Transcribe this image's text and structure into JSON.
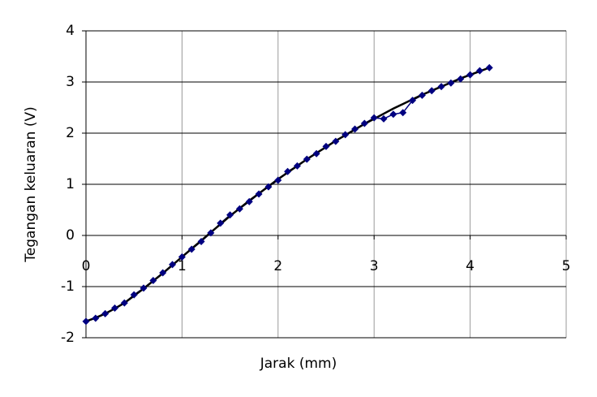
{
  "chart_data": {
    "type": "line",
    "xlabel": "Jarak  (mm)",
    "ylabel": "Tegangan keluaran (V)",
    "x": [
      0,
      0.1,
      0.2,
      0.3,
      0.4,
      0.5,
      0.6,
      0.7,
      0.8,
      0.9,
      1,
      1.1,
      1.2,
      1.3,
      1.4,
      1.5,
      1.6,
      1.7,
      1.8,
      1.9,
      2,
      2.1,
      2.2,
      2.3,
      2.4,
      2.5,
      2.6,
      2.7,
      2.8,
      2.9,
      3,
      3.1,
      3.2,
      3.3,
      3.4,
      3.5,
      3.6,
      3.7,
      3.8,
      3.9,
      4,
      4.1,
      4.2
    ],
    "series": [
      {
        "color": "#000080",
        "marker": "diamond",
        "values": [
          -1.68,
          -1.62,
          -1.53,
          -1.42,
          -1.32,
          -1.16,
          -1.03,
          -0.88,
          -0.73,
          -0.57,
          -0.42,
          -0.27,
          -0.12,
          0.05,
          0.24,
          0.4,
          0.52,
          0.66,
          0.81,
          0.95,
          1.08,
          1.25,
          1.36,
          1.49,
          1.6,
          1.74,
          1.84,
          1.97,
          2.08,
          2.19,
          2.3,
          2.28,
          2.37,
          2.4,
          2.64,
          2.74,
          2.83,
          2.91,
          2.98,
          3.06,
          3.14,
          3.22,
          3.28
        ]
      },
      {
        "color": "#000000",
        "values": [
          -1.68,
          -1.61,
          -1.53,
          -1.43,
          -1.32,
          -1.18,
          -1.04,
          -0.89,
          -0.74,
          -0.58,
          -0.42,
          -0.26,
          -0.1,
          0.06,
          0.22,
          0.38,
          0.53,
          0.68,
          0.82,
          0.96,
          1.1,
          1.23,
          1.36,
          1.49,
          1.61,
          1.73,
          1.85,
          1.96,
          2.07,
          2.18,
          2.28,
          2.38,
          2.48,
          2.57,
          2.66,
          2.75,
          2.83,
          2.91,
          2.99,
          3.07,
          3.14,
          3.21,
          3.28
        ]
      }
    ],
    "xlim": [
      0,
      5
    ],
    "xticks": [
      0,
      1,
      2,
      3,
      4,
      5
    ],
    "ylim": [
      -2,
      4
    ],
    "yticks": [
      -2,
      -1,
      0,
      1,
      2,
      3,
      4
    ],
    "grid": true
  }
}
